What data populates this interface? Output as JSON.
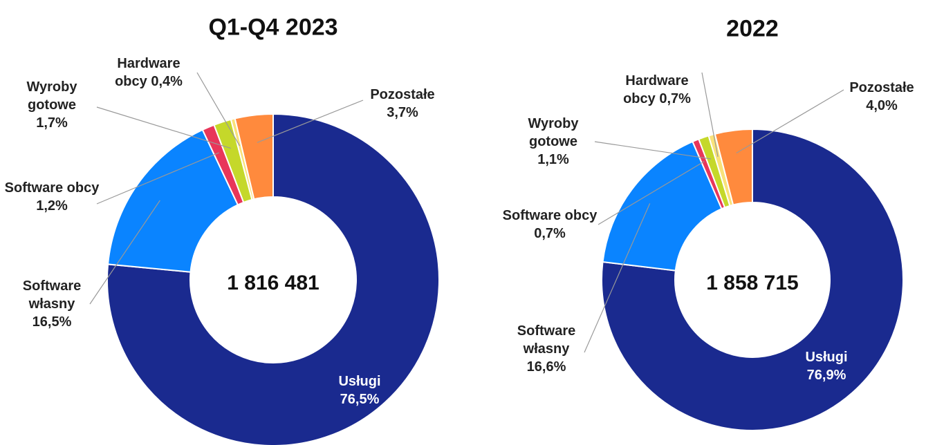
{
  "chart_data": [
    {
      "type": "donut",
      "title": "Q1-Q4 2023",
      "center_label": "1 816 481",
      "categories": [
        "Usługi",
        "Software własny",
        "Software obcy",
        "Wyroby gotowe",
        "Hardware obcy",
        "Pozostałe"
      ],
      "values": [
        76.5,
        16.5,
        1.2,
        1.7,
        0.4,
        3.7
      ],
      "value_labels": [
        "76,5%",
        "16,5%",
        "1,2%",
        "1,7%",
        "0,4%",
        "3,7%"
      ],
      "colors": [
        "#1a2a8f",
        "#0a84ff",
        "#e8365a",
        "#c5d82a",
        "#f9e27a",
        "#ff8a3d"
      ]
    },
    {
      "type": "donut",
      "title": "2022",
      "center_label": "1 858 715",
      "categories": [
        "Usługi",
        "Software własny",
        "Software obcy",
        "Wyroby gotowe",
        "Hardware obcy",
        "Pozostałe"
      ],
      "values": [
        76.9,
        16.6,
        0.7,
        1.1,
        0.7,
        4.0
      ],
      "value_labels": [
        "76,9%",
        "16,6%",
        "0,7%",
        "1,1%",
        "0,7%",
        "4,0%"
      ],
      "colors": [
        "#1a2a8f",
        "#0a84ff",
        "#e8365a",
        "#c5d82a",
        "#f9e27a",
        "#ff8a3d"
      ]
    }
  ]
}
